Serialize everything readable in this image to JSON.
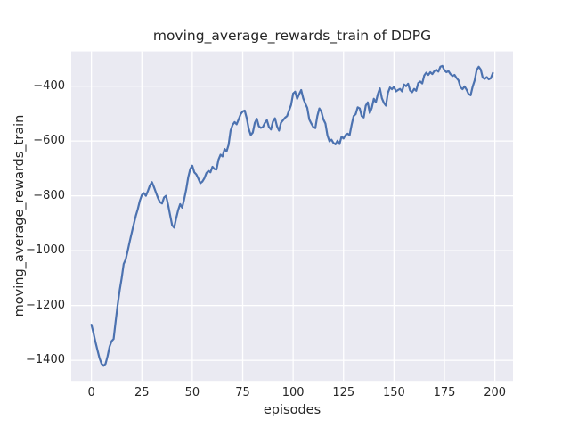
{
  "colors": {
    "figure_background": "#ffffff",
    "axes_background": "#eaeaf2",
    "grid": "#ffffff",
    "line": "#4c72b0",
    "text": "#262626"
  },
  "chart_data": {
    "type": "line",
    "title": "moving_average_rewards_train of DDPG",
    "xlabel": "episodes",
    "ylabel": "moving_average_rewards_train",
    "legend": null,
    "grid": true,
    "xticks": [
      0,
      25,
      50,
      75,
      100,
      125,
      150,
      175,
      200
    ],
    "yticks": [
      -400,
      -600,
      -800,
      -1000,
      -1200,
      -1400
    ],
    "xlim": [
      -10,
      209
    ],
    "ylim": [
      -1475,
      -273
    ],
    "series": [
      {
        "name": "moving_average_rewards_train",
        "x0": 0,
        "dx": 1,
        "values": [
          -1270,
          -1300,
          -1333,
          -1363,
          -1392,
          -1412,
          -1420,
          -1413,
          -1385,
          -1350,
          -1330,
          -1322,
          -1258,
          -1198,
          -1145,
          -1100,
          -1048,
          -1032,
          -1000,
          -966,
          -934,
          -903,
          -873,
          -848,
          -818,
          -797,
          -790,
          -800,
          -782,
          -762,
          -750,
          -768,
          -788,
          -808,
          -823,
          -828,
          -806,
          -800,
          -832,
          -870,
          -907,
          -916,
          -882,
          -852,
          -830,
          -843,
          -812,
          -776,
          -732,
          -702,
          -690,
          -714,
          -722,
          -737,
          -754,
          -748,
          -736,
          -717,
          -709,
          -714,
          -694,
          -702,
          -704,
          -668,
          -650,
          -656,
          -629,
          -638,
          -614,
          -562,
          -541,
          -531,
          -539,
          -521,
          -502,
          -492,
          -489,
          -517,
          -556,
          -578,
          -569,
          -534,
          -519,
          -546,
          -552,
          -549,
          -534,
          -524,
          -549,
          -558,
          -529,
          -517,
          -546,
          -562,
          -533,
          -524,
          -515,
          -509,
          -488,
          -468,
          -427,
          -420,
          -446,
          -429,
          -414,
          -444,
          -463,
          -479,
          -521,
          -536,
          -549,
          -553,
          -509,
          -481,
          -493,
          -521,
          -536,
          -579,
          -601,
          -595,
          -607,
          -612,
          -599,
          -611,
          -584,
          -591,
          -578,
          -573,
          -579,
          -541,
          -509,
          -502,
          -477,
          -481,
          -509,
          -514,
          -471,
          -459,
          -498,
          -479,
          -446,
          -459,
          -429,
          -408,
          -444,
          -461,
          -471,
          -424,
          -405,
          -411,
          -402,
          -419,
          -414,
          -410,
          -419,
          -394,
          -400,
          -391,
          -416,
          -422,
          -410,
          -417,
          -389,
          -383,
          -390,
          -361,
          -351,
          -359,
          -349,
          -356,
          -345,
          -340,
          -347,
          -329,
          -326,
          -342,
          -349,
          -345,
          -356,
          -363,
          -359,
          -370,
          -379,
          -404,
          -411,
          -401,
          -413,
          -429,
          -433,
          -402,
          -379,
          -341,
          -329,
          -339,
          -369,
          -373,
          -367,
          -375,
          -371,
          -352
        ]
      }
    ]
  }
}
